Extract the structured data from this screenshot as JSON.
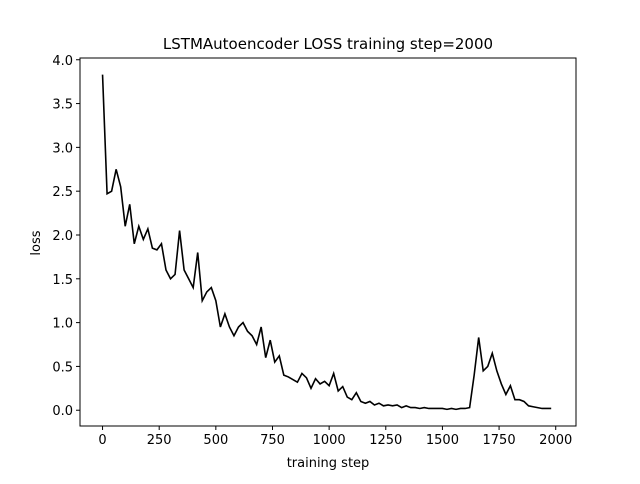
{
  "chart_data": {
    "type": "line",
    "title": "LSTMAutoencoder LOSS training step=2000",
    "x_label": "training step",
    "y_label": "loss",
    "x": [
      0,
      20,
      40,
      60,
      80,
      100,
      120,
      140,
      160,
      180,
      200,
      220,
      240,
      260,
      280,
      300,
      320,
      340,
      360,
      380,
      400,
      420,
      440,
      460,
      480,
      500,
      520,
      540,
      560,
      580,
      600,
      620,
      640,
      660,
      680,
      700,
      720,
      740,
      760,
      780,
      800,
      820,
      840,
      860,
      880,
      900,
      920,
      940,
      960,
      980,
      1000,
      1020,
      1040,
      1060,
      1080,
      1100,
      1120,
      1140,
      1160,
      1180,
      1200,
      1220,
      1240,
      1260,
      1280,
      1300,
      1320,
      1340,
      1360,
      1380,
      1400,
      1420,
      1440,
      1460,
      1480,
      1500,
      1520,
      1540,
      1560,
      1580,
      1600,
      1620,
      1640,
      1660,
      1680,
      1700,
      1720,
      1740,
      1760,
      1780,
      1800,
      1820,
      1840,
      1860,
      1880,
      1900,
      1920,
      1940,
      1960,
      1980
    ],
    "series": [
      {
        "name": "loss",
        "color": "#000000",
        "values": [
          3.83,
          2.47,
          2.5,
          2.75,
          2.55,
          2.1,
          2.35,
          1.9,
          2.1,
          1.95,
          2.07,
          1.85,
          1.83,
          1.9,
          1.6,
          1.5,
          1.55,
          2.05,
          1.6,
          1.5,
          1.4,
          1.8,
          1.25,
          1.35,
          1.4,
          1.25,
          0.95,
          1.1,
          0.95,
          0.85,
          0.95,
          1.0,
          0.9,
          0.85,
          0.75,
          0.95,
          0.6,
          0.8,
          0.55,
          0.62,
          0.4,
          0.38,
          0.35,
          0.32,
          0.42,
          0.37,
          0.25,
          0.36,
          0.3,
          0.33,
          0.28,
          0.42,
          0.22,
          0.27,
          0.15,
          0.12,
          0.2,
          0.1,
          0.08,
          0.1,
          0.06,
          0.08,
          0.05,
          0.06,
          0.05,
          0.06,
          0.03,
          0.05,
          0.03,
          0.03,
          0.02,
          0.03,
          0.02,
          0.02,
          0.02,
          0.02,
          0.01,
          0.02,
          0.01,
          0.02,
          0.02,
          0.03,
          0.4,
          0.83,
          0.45,
          0.5,
          0.65,
          0.45,
          0.3,
          0.18,
          0.28,
          0.12,
          0.12,
          0.1,
          0.05,
          0.04,
          0.03,
          0.02,
          0.02,
          0.02
        ]
      }
    ],
    "xlim": [
      -99.5,
      2089.5
    ],
    "xticks": [
      0,
      250,
      500,
      750,
      1000,
      1250,
      1500,
      1750,
      2000
    ],
    "ylim": [
      -0.18,
      4.02
    ],
    "yticks": [
      {
        "value": 0,
        "label": "0.0"
      },
      0.5,
      {
        "value": 1,
        "label": "1.0"
      },
      1.5,
      {
        "value": 2,
        "label": "2.0"
      },
      2.5,
      {
        "value": 3,
        "label": "3.0"
      },
      3.5,
      {
        "value": 4,
        "label": "4.0"
      }
    ]
  }
}
